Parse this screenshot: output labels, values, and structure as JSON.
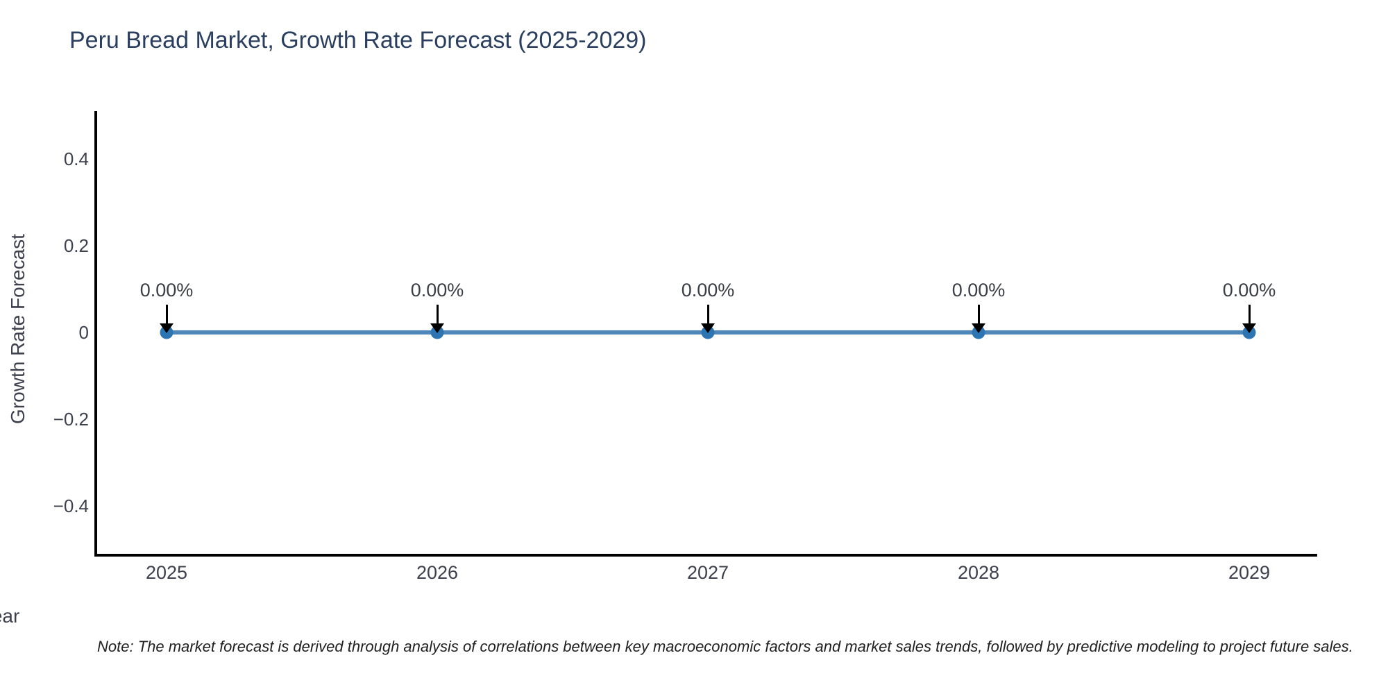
{
  "chart_data": {
    "type": "line",
    "title": "Peru Bread Market, Growth Rate Forecast (2025-2029)",
    "xlabel": "Year",
    "ylabel": "Growth Rate Forecast",
    "categories": [
      "2025",
      "2026",
      "2027",
      "2028",
      "2029"
    ],
    "series": [
      {
        "name": "Growth Rate Forecast",
        "values": [
          0,
          0,
          0,
          0,
          0
        ]
      }
    ],
    "point_labels": [
      "0.00%",
      "0.00%",
      "0.00%",
      "0.00%",
      "0.00%"
    ],
    "yticks": [
      {
        "value": 0.4,
        "label": "0.4"
      },
      {
        "value": 0.2,
        "label": "0.2"
      },
      {
        "value": 0,
        "label": "0"
      },
      {
        "value": -0.2,
        "label": "−0.2"
      },
      {
        "value": -0.4,
        "label": "−0.4"
      }
    ],
    "ylim": [
      -0.5,
      0.5
    ],
    "grid": false,
    "legend": false,
    "annotation_arrows": "down-to-point",
    "note": "Note: The market forecast is derived through analysis of correlations between key macroeconomic factors and market sales trends, followed by predictive modeling to project future sales.",
    "colors": {
      "line": "#4f87ba",
      "marker": "#2d74b2",
      "axis": "#000000",
      "arrow": "#000000",
      "title_text": "#2a3f5f",
      "tick_text": "#3d414e",
      "annotation_text": "#3a3e45",
      "background": "#ffffff"
    }
  }
}
